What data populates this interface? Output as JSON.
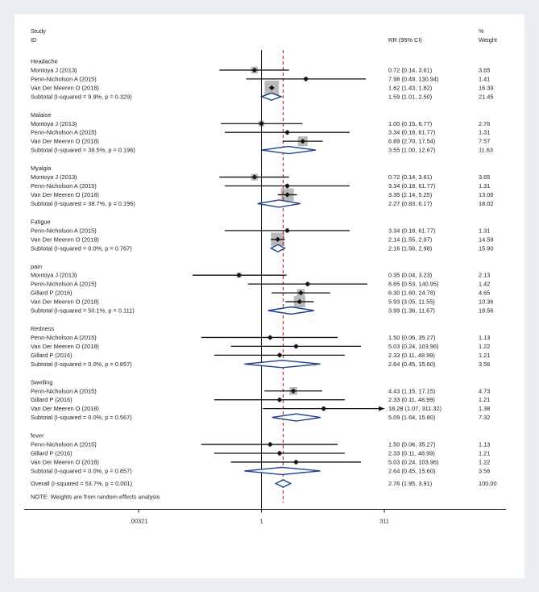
{
  "chart_data": {
    "type": "forest",
    "header": {
      "study": "Study",
      "id": "ID",
      "effect": "RR (95% CI)",
      "weight_pct": "%",
      "weight": "Weight"
    },
    "null_value": 1,
    "pooled_rr": 2.76,
    "axis_ticks": [
      {
        "value": 0.00321,
        "label": ".00321"
      },
      {
        "value": 1,
        "label": "1"
      },
      {
        "value": 311,
        "label": "311"
      }
    ],
    "groups": [
      {
        "name": "Headache",
        "studies": [
          {
            "label": "Montoya J (2013)",
            "rr": 0.72,
            "lo": 0.14,
            "hi": 3.61,
            "ci": "0.72 (0.14, 3.61)",
            "w": 3.65,
            "weight": "3.65"
          },
          {
            "label": "Penn-Nicholson A (2015)",
            "rr": 7.98,
            "lo": 0.49,
            "hi": 130.94,
            "ci": "7.98 (0.49, 130.94)",
            "w": 1.41,
            "weight": "1.41"
          },
          {
            "label": "Van Der Meeren O (2018)",
            "rr": 1.62,
            "lo": 1.43,
            "hi": 1.82,
            "ci": "1.62 (1.43, 1.82)",
            "w": 16.39,
            "weight": "16.39"
          }
        ],
        "subtotal": {
          "label": "Subtotal  (I-squared = 9.9%, p = 0.329)",
          "rr": 1.59,
          "lo": 1.01,
          "hi": 2.5,
          "ci": "1.59 (1.01, 2.50)",
          "weight": "21.45"
        }
      },
      {
        "name": "Malaise",
        "studies": [
          {
            "label": "Montoya J (2013)",
            "rr": 1.0,
            "lo": 0.15,
            "hi": 6.77,
            "ci": "1.00 (0.15, 6.77)",
            "w": 2.76,
            "weight": "2.76"
          },
          {
            "label": "Penn-Nicholson A (2015)",
            "rr": 3.34,
            "lo": 0.18,
            "hi": 61.77,
            "ci": "3.34 (0.18, 61.77)",
            "w": 1.31,
            "weight": "1.31"
          },
          {
            "label": "Van Der Meeren O (2018)",
            "rr": 6.89,
            "lo": 2.7,
            "hi": 17.54,
            "ci": "6.89 (2.70, 17.54)",
            "w": 7.57,
            "weight": "7.57"
          }
        ],
        "subtotal": {
          "label": "Subtotal  (I-squared = 38.5%, p = 0.196)",
          "rr": 3.55,
          "lo": 1.0,
          "hi": 12.67,
          "ci": "3.55 (1.00, 12.67)",
          "weight": "11.63"
        }
      },
      {
        "name": "Myalgia",
        "studies": [
          {
            "label": "Montoya J (2013)",
            "rr": 0.72,
            "lo": 0.14,
            "hi": 3.61,
            "ci": "0.72 (0.14, 3.61)",
            "w": 3.65,
            "weight": "3.65"
          },
          {
            "label": "Penn-Nicholson A (2015)",
            "rr": 3.34,
            "lo": 0.18,
            "hi": 61.77,
            "ci": "3.34 (0.18, 61.77)",
            "w": 1.31,
            "weight": "1.31"
          },
          {
            "label": "Van Der Meeren O (2018)",
            "rr": 3.35,
            "lo": 2.14,
            "hi": 5.25,
            "ci": "3.35 (2.14, 5.25)",
            "w": 13.06,
            "weight": "13.06"
          }
        ],
        "subtotal": {
          "label": "Subtotal  (I-squared = 38.7%, p = 0.196)",
          "rr": 2.27,
          "lo": 0.83,
          "hi": 6.17,
          "ci": "2.27 (0.83, 6.17)",
          "weight": "18.02"
        }
      },
      {
        "name": "Fatigue",
        "studies": [
          {
            "label": "Penn-Nicholson A (2015)",
            "rr": 3.34,
            "lo": 0.18,
            "hi": 61.77,
            "ci": "3.34 (0.18, 61.77)",
            "w": 1.31,
            "weight": "1.31"
          },
          {
            "label": "Van Der Meeren O (2018)",
            "rr": 2.14,
            "lo": 1.55,
            "hi": 2.97,
            "ci": "2.14 (1.55, 2.97)",
            "w": 14.59,
            "weight": "14.59"
          }
        ],
        "subtotal": {
          "label": "Subtotal  (I-squared = 0.0%, p = 0.767)",
          "rr": 2.16,
          "lo": 1.56,
          "hi": 2.98,
          "ci": "2.16 (1.56, 2.98)",
          "weight": "15.90"
        }
      },
      {
        "name": "pain",
        "studies": [
          {
            "label": "Montoya J (2013)",
            "rr": 0.35,
            "lo": 0.04,
            "hi": 3.23,
            "ci": "0.35 (0.04, 3.23)",
            "w": 2.13,
            "weight": "2.13"
          },
          {
            "label": "Penn-Nicholson A (2015)",
            "rr": 8.65,
            "lo": 0.53,
            "hi": 140.95,
            "ci": "8.65 (0.53, 140.95)",
            "w": 1.42,
            "weight": "1.42"
          },
          {
            "label": "Gillard P (2016)",
            "rr": 6.3,
            "lo": 1.6,
            "hi": 24.78,
            "ci": "6.30 (1.60, 24.78)",
            "w": 4.65,
            "weight": "4.65"
          },
          {
            "label": "Van Der Meeren O (2018)",
            "rr": 5.93,
            "lo": 3.05,
            "hi": 11.55,
            "ci": "5.93 (3.05, 11.55)",
            "w": 10.36,
            "weight": "10.36"
          }
        ],
        "subtotal": {
          "label": "Subtotal  (I-squared = 50.1%, p = 0.111)",
          "rr": 3.99,
          "lo": 1.36,
          "hi": 11.67,
          "ci": "3.99 (1.36, 11.67)",
          "weight": "18.56"
        }
      },
      {
        "name": "Redness",
        "studies": [
          {
            "label": "Penn-Nicholson A (2015)",
            "rr": 1.5,
            "lo": 0.06,
            "hi": 35.27,
            "ci": "1.50 (0.06, 35.27)",
            "w": 1.13,
            "weight": "1.13"
          },
          {
            "label": "Van Der Meeren O (2018)",
            "rr": 5.03,
            "lo": 0.24,
            "hi": 103.96,
            "ci": "5.03 (0.24, 103.96)",
            "w": 1.22,
            "weight": "1.22"
          },
          {
            "label": "Gillard P (2016)",
            "rr": 2.33,
            "lo": 0.11,
            "hi": 48.99,
            "ci": "2.33 (0.11, 48.99)",
            "w": 1.21,
            "weight": "1.21"
          }
        ],
        "subtotal": {
          "label": "Subtotal  (I-squared = 0.0%, p = 0.857)",
          "rr": 2.64,
          "lo": 0.45,
          "hi": 15.6,
          "ci": "2.64 (0.45, 15.60)",
          "weight": "3.56"
        }
      },
      {
        "name": "Swelling",
        "studies": [
          {
            "label": "Penn-Nicholson A (2015)",
            "rr": 4.43,
            "lo": 1.15,
            "hi": 17.15,
            "ci": "4.43 (1.15, 17.15)",
            "w": 4.73,
            "weight": "4.73"
          },
          {
            "label": "Gillard P (2016)",
            "rr": 2.33,
            "lo": 0.11,
            "hi": 48.99,
            "ci": "2.33 (0.11, 48.99)",
            "w": 1.21,
            "weight": "1.21"
          },
          {
            "label": "Van Der Meeren O (2018)",
            "rr": 18.28,
            "lo": 1.07,
            "hi": 311.32,
            "ci": "18.28 (1.07, 311.32)",
            "w": 1.38,
            "weight": "1.38",
            "arrow": true
          }
        ],
        "subtotal": {
          "label": "Subtotal  (I-squared = 0.0%, p = 0.567)",
          "rr": 5.09,
          "lo": 1.64,
          "hi": 15.8,
          "ci": "5.09 (1.64, 15.80)",
          "weight": "7.32"
        }
      },
      {
        "name": "fever",
        "studies": [
          {
            "label": "Penn-Nicholson A (2015)",
            "rr": 1.5,
            "lo": 0.06,
            "hi": 35.27,
            "ci": "1.50 (0.06, 35.27)",
            "w": 1.13,
            "weight": "1.13"
          },
          {
            "label": "Gillard P (2016)",
            "rr": 2.33,
            "lo": 0.11,
            "hi": 48.99,
            "ci": "2.33 (0.11, 48.99)",
            "w": 1.21,
            "weight": "1.21"
          },
          {
            "label": "Van Der Meeren O (2018)",
            "rr": 5.03,
            "lo": 0.24,
            "hi": 103.96,
            "ci": "5.03 (0.24, 103.96)",
            "w": 1.22,
            "weight": "1.22"
          }
        ],
        "subtotal": {
          "label": "Subtotal  (I-squared = 0.0%, p = 0.857)",
          "rr": 2.64,
          "lo": 0.45,
          "hi": 15.6,
          "ci": "2.64 (0.45, 15.60)",
          "weight": "3.56"
        }
      }
    ],
    "overall": {
      "label": "Overall  (I-squared = 53.7%, p = 0.001)",
      "rr": 2.76,
      "lo": 1.95,
      "hi": 3.91,
      "ci": "2.76 (1.95, 3.91)",
      "weight": "100.00"
    },
    "note": "NOTE: Weights are from random effects analysis"
  },
  "colors": {
    "line": "#111111",
    "box": "#b9b9b9",
    "diamond": "#1f3f8f",
    "ref_line": "#c0282d",
    "frame_bg": "#e9eef3"
  }
}
